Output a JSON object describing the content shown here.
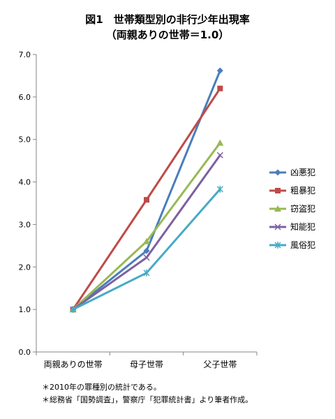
{
  "chart_data": {
    "type": "line",
    "title": "図1　世帯類型別の非行少年出現率",
    "subtitle": "（両親ありの世帯＝1.0）",
    "categories": [
      "両親ありの世帯",
      "母子世帯",
      "父子世帯"
    ],
    "ylim": [
      0,
      7
    ],
    "yticks": [
      "0.0",
      "1.0",
      "2.0",
      "3.0",
      "4.0",
      "5.0",
      "6.0",
      "7.0"
    ],
    "grid": false,
    "legend_position": "right",
    "series": [
      {
        "name": "凶悪犯",
        "values": [
          1.0,
          2.38,
          6.62
        ],
        "color": "#4a7ebb",
        "marker": "diamond"
      },
      {
        "name": "粗暴犯",
        "values": [
          1.0,
          3.58,
          6.2
        ],
        "color": "#be4b48",
        "marker": "square"
      },
      {
        "name": "窃盗犯",
        "values": [
          1.0,
          2.6,
          4.92
        ],
        "color": "#98b954",
        "marker": "triangle"
      },
      {
        "name": "知能犯",
        "values": [
          1.0,
          2.22,
          4.63
        ],
        "color": "#7d60a0",
        "marker": "x"
      },
      {
        "name": "風俗犯",
        "values": [
          1.0,
          1.86,
          3.83
        ],
        "color": "#46aac5",
        "marker": "star"
      }
    ]
  },
  "notes": [
    "＊2010年の罪種別の統計である。",
    "＊総務省「国勢調査」，警察庁「犯罪統計書」より筆者作成。"
  ]
}
